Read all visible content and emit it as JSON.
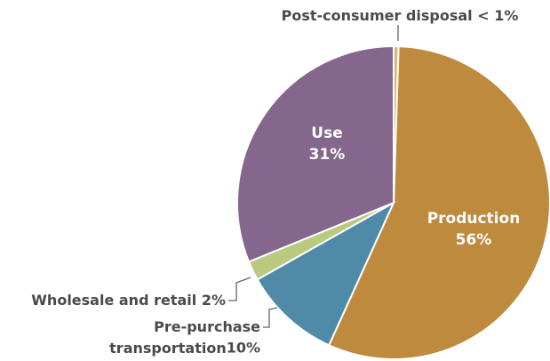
{
  "chart_data": {
    "type": "pie",
    "categories": [
      "Production",
      "Pre-purchase transportation",
      "Wholesale and retail",
      "Use",
      "Post-consumer disposal"
    ],
    "values": [
      56,
      10,
      2,
      31,
      0.5
    ],
    "value_labels": [
      "56%",
      "10%",
      "2%",
      "31%",
      "< 1%"
    ],
    "colors": [
      "#bd8a3e",
      "#4f8aa8",
      "#b9c97f",
      "#85668c",
      "#dcb676"
    ]
  }
}
